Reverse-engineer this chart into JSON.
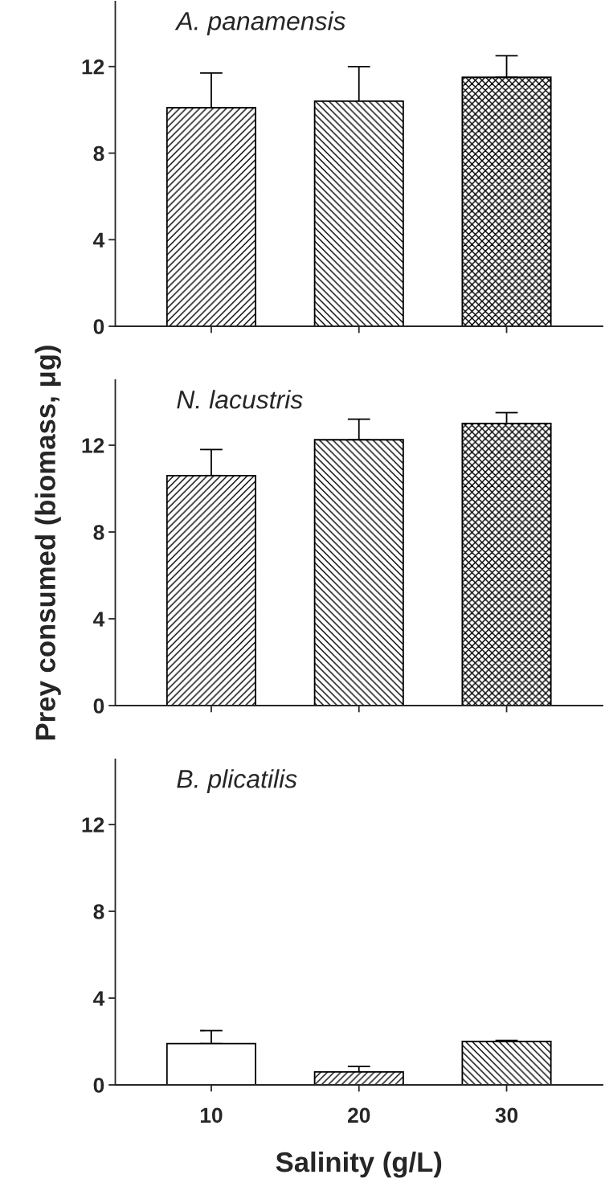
{
  "chart_data": [
    {
      "type": "bar",
      "title": "A. panamensis",
      "categories": [
        null,
        null,
        null
      ],
      "values": [
        10.1,
        10.4,
        11.5
      ],
      "errors": [
        [
          10.1,
          11.7
        ],
        [
          10.4,
          12.0
        ],
        [
          11.5,
          12.5
        ]
      ],
      "colors": [
        "#000000",
        "#000000",
        "#000000"
      ],
      "ylim": [
        0,
        15
      ],
      "yticks": [
        0,
        4,
        8,
        12
      ],
      "tick_labels": "y"
    },
    {
      "type": "bar",
      "title": "N. lacustris",
      "ylabel": "Prey consumed (biomass, μg)",
      "categories": [
        null,
        null,
        null
      ],
      "values": [
        10.6,
        12.25,
        13.0
      ],
      "errors": [
        [
          10.6,
          11.8
        ],
        [
          12.25,
          13.2
        ],
        [
          13.0,
          13.5
        ]
      ],
      "colors": [
        "#000000",
        "#000000",
        "#000000"
      ],
      "ylim": [
        0,
        15
      ],
      "yticks": [
        0,
        4,
        8,
        12
      ],
      "tick_labels": "y"
    },
    {
      "type": "bar",
      "title": "B. plicatilis",
      "xlabel": "Salinity (g/L)",
      "categories": [
        "10",
        "20",
        "30"
      ],
      "values": [
        1.9,
        0.6,
        2.0
      ],
      "errors": [
        [
          1.9,
          2.5
        ],
        [
          0.6,
          0.85
        ],
        [
          2.0,
          2.05
        ]
      ],
      "colors": [
        "#ffffff",
        "#000000",
        "#000000"
      ],
      "ylim": [
        0,
        15
      ],
      "yticks": [
        0,
        4,
        8,
        12
      ]
    }
  ]
}
